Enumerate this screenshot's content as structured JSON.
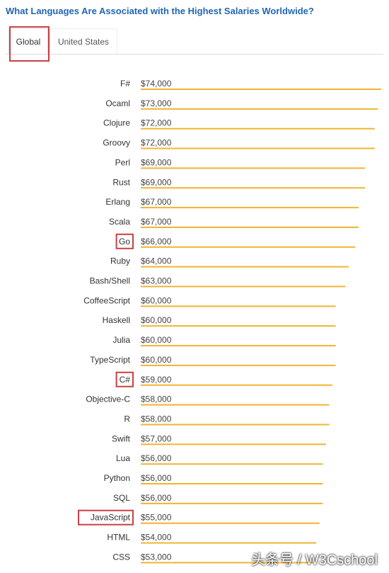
{
  "header": {
    "title": "What Languages Are Associated with the Highest Salaries Worldwide?"
  },
  "tabs": [
    {
      "label": "Global",
      "selected": true
    },
    {
      "label": "United States",
      "selected": false
    }
  ],
  "chart_data": {
    "type": "bar",
    "orientation": "horizontal",
    "title": "What Languages Are Associated with the Highest Salaries Worldwide?",
    "xlabel": "",
    "ylabel": "",
    "bar_color": "#f0b431",
    "highlight_color": "#c94043",
    "grid": false,
    "categories": [
      "F#",
      "Ocaml",
      "Clojure",
      "Groovy",
      "Perl",
      "Rust",
      "Erlang",
      "Scala",
      "Go",
      "Ruby",
      "Bash/Shell",
      "CoffeeScript",
      "Haskell",
      "Julia",
      "TypeScript",
      "C#",
      "Objective-C",
      "R",
      "Swift",
      "Lua",
      "Python",
      "SQL",
      "JavaScript",
      "HTML",
      "CSS"
    ],
    "values": [
      74000,
      73000,
      72000,
      72000,
      69000,
      69000,
      67000,
      67000,
      66000,
      64000,
      63000,
      60000,
      60000,
      60000,
      60000,
      59000,
      58000,
      58000,
      57000,
      56000,
      56000,
      56000,
      55000,
      54000,
      53000
    ],
    "value_labels": [
      "$74,000",
      "$73,000",
      "$72,000",
      "$72,000",
      "$69,000",
      "$69,000",
      "$67,000",
      "$67,000",
      "$66,000",
      "$64,000",
      "$63,000",
      "$60,000",
      "$60,000",
      "$60,000",
      "$60,000",
      "$59,000",
      "$58,000",
      "$58,000",
      "$57,000",
      "$56,000",
      "$56,000",
      "$56,000",
      "$55,000",
      "$54,000",
      "$53,000"
    ],
    "highlighted": [
      "Go",
      "C#",
      "JavaScript"
    ]
  },
  "watermark": "头条号 / W3Cschool"
}
